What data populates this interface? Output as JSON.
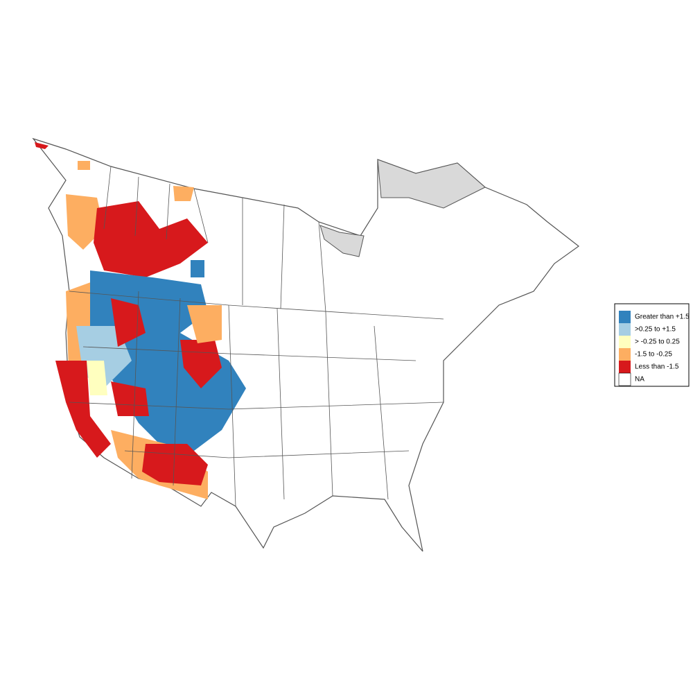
{
  "legend": {
    "items": [
      {
        "label": "Greater than +1.5",
        "color": "#3182bd"
      },
      {
        "label": ">0.25 to +1.5",
        "color": "#a6cee3"
      },
      {
        "label": "> -0.25 to 0.25",
        "color": "#ffffbf"
      },
      {
        "label": "-1.5 to -0.25",
        "color": "#fdae61"
      },
      {
        "label": "Less than -1.5",
        "color": "#d7191c"
      },
      {
        "label": "NA",
        "color": "#ffffff"
      }
    ]
  }
}
